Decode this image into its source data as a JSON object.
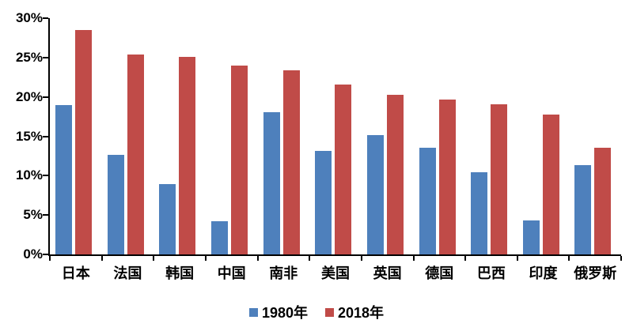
{
  "chart_data": {
    "type": "bar",
    "categories": [
      "日本",
      "法国",
      "韩国",
      "中国",
      "南非",
      "美国",
      "英国",
      "德国",
      "巴西",
      "印度",
      "俄罗斯"
    ],
    "series": [
      {
        "name": "1980年",
        "color": "#4e80bc",
        "values": [
          19.0,
          12.6,
          8.9,
          4.2,
          18.1,
          13.1,
          15.2,
          13.5,
          10.4,
          4.3,
          11.3
        ]
      },
      {
        "name": "2018年",
        "color": "#c04b48",
        "values": [
          28.5,
          25.4,
          25.1,
          24.0,
          23.4,
          21.6,
          20.3,
          19.7,
          19.1,
          17.8,
          13.5
        ]
      }
    ],
    "title": "",
    "xlabel": "",
    "ylabel": "",
    "ylim": [
      0,
      30
    ],
    "ytick_step": 5,
    "ytick_labels": [
      "0%",
      "5%",
      "10%",
      "15%",
      "20%",
      "25%",
      "30%"
    ],
    "grid": false,
    "legend_position": "bottom-center",
    "axis_color": "#000000",
    "text_color": "#000000",
    "background": "#ffffff"
  }
}
